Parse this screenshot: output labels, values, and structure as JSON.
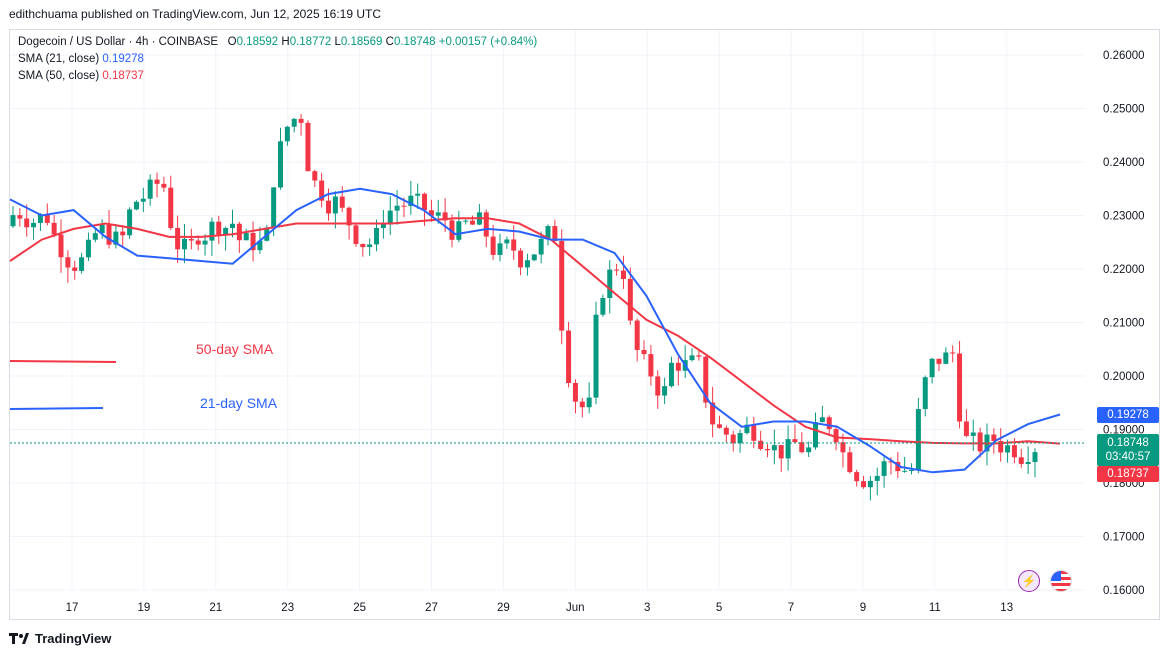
{
  "header": {
    "publisher_line": "edithchuama published on TradingView.com, Jun 12, 2025 16:19 UTC"
  },
  "legend": {
    "symbol": "Dogecoin / US Dollar · 4h · COINBASE",
    "o_label": "O",
    "o_value": "0.18592",
    "h_label": "H",
    "h_value": "0.18772",
    "l_label": "L",
    "l_value": "0.18569",
    "c_label": "C",
    "c_value": "0.18748",
    "change": "+0.00157 (+0.84%)",
    "sma21_label": "SMA (21, close)",
    "sma21_value": "0.19278",
    "sma50_label": "SMA (50, close)",
    "sma50_value": "0.18737"
  },
  "price_tags": {
    "sma21": "0.19278",
    "last_price": "0.18748",
    "countdown": "03:40:57",
    "sma50": "0.18737"
  },
  "colors": {
    "up": "#089981",
    "down": "#f23645",
    "sma21": "#2962ff",
    "sma50": "#f23645",
    "grid": "#f0f3fa",
    "axis_text": "#131722"
  },
  "branding": {
    "logo_text": "TradingView"
  },
  "icons": [
    "flash-icon",
    "us-flag-icon",
    "tradingview-logo-icon"
  ],
  "chart_data": {
    "type": "candlestick",
    "title": "Dogecoin / US Dollar · 4h · COINBASE",
    "ylim": [
      0.16,
      0.26
    ],
    "y_ticks": [
      "0.26000",
      "0.25000",
      "0.24000",
      "0.23000",
      "0.22000",
      "0.21000",
      "0.20000",
      "0.19000",
      "0.18000",
      "0.17000",
      "0.16000"
    ],
    "x_ticks": [
      "17",
      "19",
      "21",
      "23",
      "25",
      "27",
      "29",
      "Jun",
      "3",
      "5",
      "7",
      "9",
      "11",
      "13"
    ],
    "annotations": [
      {
        "text": "50-day SMA",
        "color": "#f23645"
      },
      {
        "text": "21-day SMA",
        "color": "#2962ff"
      }
    ],
    "series": [
      {
        "name": "SMA (21, close)",
        "color": "#2962ff",
        "values": [
          0.233,
          0.23,
          0.231,
          0.226,
          0.2225,
          0.222,
          0.2215,
          0.221,
          0.226,
          0.231,
          0.234,
          0.235,
          0.234,
          0.231,
          0.2265,
          0.2275,
          0.227,
          0.2255,
          0.2255,
          0.223,
          0.215,
          0.204,
          0.195,
          0.1905,
          0.1915,
          0.1915,
          0.1905,
          0.187,
          0.183,
          0.182,
          0.1825,
          0.188,
          0.191,
          0.1928
        ]
      },
      {
        "name": "SMA (50, close)",
        "color": "#f23645",
        "values": [
          0.2215,
          0.2255,
          0.2275,
          0.2285,
          0.2275,
          0.226,
          0.226,
          0.2265,
          0.2275,
          0.2285,
          0.2285,
          0.2285,
          0.2285,
          0.229,
          0.2295,
          0.2295,
          0.2285,
          0.2255,
          0.2205,
          0.2155,
          0.2105,
          0.2075,
          0.2035,
          0.199,
          0.1945,
          0.1905,
          0.1885,
          0.1882,
          0.1878,
          0.1875,
          0.1874,
          0.1874,
          0.1878,
          0.18737
        ]
      }
    ],
    "candles_open_close_high_low_sample": [
      {
        "x": "17",
        "o": 0.22,
        "h": 0.228,
        "l": 0.215,
        "c": 0.223
      },
      {
        "x": "19",
        "o": 0.222,
        "h": 0.237,
        "l": 0.218,
        "c": 0.235
      },
      {
        "x": "21",
        "o": 0.226,
        "h": 0.236,
        "l": 0.221,
        "c": 0.23
      },
      {
        "x": "23",
        "o": 0.245,
        "h": 0.254,
        "l": 0.24,
        "c": 0.25
      },
      {
        "x": "25",
        "o": 0.228,
        "h": 0.232,
        "l": 0.222,
        "c": 0.226
      },
      {
        "x": "27",
        "o": 0.23,
        "h": 0.233,
        "l": 0.224,
        "c": 0.228
      },
      {
        "x": "29",
        "o": 0.226,
        "h": 0.229,
        "l": 0.218,
        "c": 0.222
      },
      {
        "x": "Jun",
        "o": 0.19,
        "h": 0.196,
        "l": 0.186,
        "c": 0.193
      },
      {
        "x": "3",
        "o": 0.195,
        "h": 0.2,
        "l": 0.188,
        "c": 0.197
      },
      {
        "x": "5",
        "o": 0.19,
        "h": 0.192,
        "l": 0.186,
        "c": 0.188
      },
      {
        "x": "7",
        "o": 0.182,
        "h": 0.188,
        "l": 0.178,
        "c": 0.186
      },
      {
        "x": "9",
        "o": 0.184,
        "h": 0.188,
        "l": 0.181,
        "c": 0.183
      },
      {
        "x": "11",
        "o": 0.199,
        "h": 0.207,
        "l": 0.193,
        "c": 0.204
      },
      {
        "x": "13",
        "o": 0.1859,
        "h": 0.1877,
        "l": 0.1857,
        "c": 0.1875
      }
    ]
  }
}
